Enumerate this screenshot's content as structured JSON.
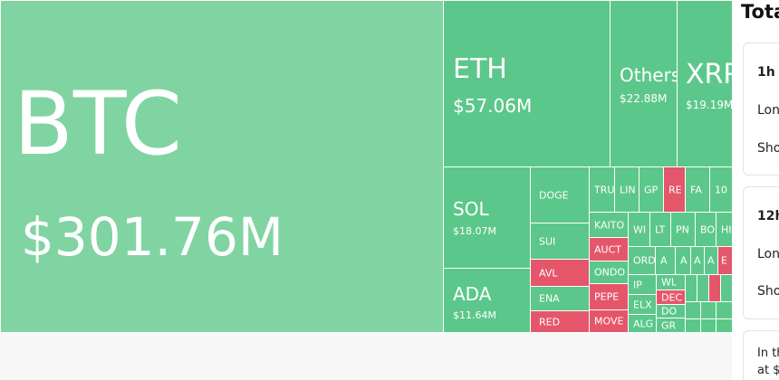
{
  "treemap": {
    "tiles": [
      {
        "label": "BTC",
        "value": "$301.76M"
      },
      {
        "label": "ETH",
        "value": "$57.06M"
      },
      {
        "label": "Others",
        "value": "$22.88M"
      },
      {
        "label": "XRP",
        "value": "$19.19M"
      },
      {
        "label": "SOL",
        "value": "$18.07M"
      },
      {
        "label": "ADA",
        "value": "$11.64M"
      },
      {
        "label": "DOGE"
      },
      {
        "label": "SUI"
      },
      {
        "label": "AVL"
      },
      {
        "label": "ENA"
      },
      {
        "label": "RED"
      },
      {
        "label": "TRU"
      },
      {
        "label": "LIN"
      },
      {
        "label": "GP"
      },
      {
        "label": "RE"
      },
      {
        "label": "FA"
      },
      {
        "label": "10"
      },
      {
        "label": "KAITO"
      },
      {
        "label": "AUCT"
      },
      {
        "label": "ONDO"
      },
      {
        "label": "PEPE"
      },
      {
        "label": "MOVE"
      },
      {
        "label": "WI"
      },
      {
        "label": "LT"
      },
      {
        "label": "PN"
      },
      {
        "label": "BO"
      },
      {
        "label": "HI"
      },
      {
        "label": "ORD"
      },
      {
        "label": "A"
      },
      {
        "label": "A"
      },
      {
        "label": "A"
      },
      {
        "label": "A"
      },
      {
        "label": "E"
      },
      {
        "label": "IP"
      },
      {
        "label": "ELX"
      },
      {
        "label": "ALG"
      },
      {
        "label": "WL"
      },
      {
        "label": "DEC"
      },
      {
        "label": "DO"
      },
      {
        "label": "GR"
      }
    ]
  },
  "sidebar": {
    "title": "Tota",
    "cards": [
      {
        "period": "1h",
        "rows": [
          "Lon",
          "Sho"
        ]
      },
      {
        "period": "12h",
        "rows": [
          "Lon",
          "Sho"
        ]
      },
      {
        "lines": [
          "In th",
          "at $"
        ]
      }
    ]
  }
}
